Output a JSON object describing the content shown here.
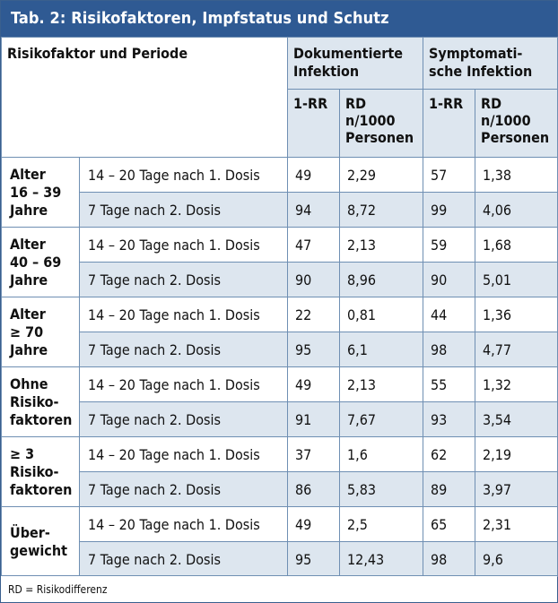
{
  "title": "Tab. 2: Risikofaktoren, Impfstatus und Schutz",
  "header": {
    "col_group_label": "Risikofaktor und Periode",
    "documented": "Dokumentierte Infektion",
    "symptomatic": "Symptomati-\nsche Infektion",
    "rr": "1-RR",
    "rd": "RD\nn/1000\nPersonen"
  },
  "groups": [
    {
      "label": "Alter\n16 – 39\nJahre",
      "rows": [
        {
          "period": "14 – 20 Tage nach 1. Dosis",
          "doc_rr": "49",
          "doc_rd": "2,29",
          "sym_rr": "57",
          "sym_rd": "1,38"
        },
        {
          "period": "7 Tage nach 2. Dosis",
          "doc_rr": "94",
          "doc_rd": "8,72",
          "sym_rr": "99",
          "sym_rd": "4,06"
        }
      ]
    },
    {
      "label": "Alter\n40 – 69\nJahre",
      "rows": [
        {
          "period": "14 – 20 Tage nach 1. Dosis",
          "doc_rr": "47",
          "doc_rd": "2,13",
          "sym_rr": "59",
          "sym_rd": "1,68"
        },
        {
          "period": "7 Tage nach 2. Dosis",
          "doc_rr": "90",
          "doc_rd": "8,96",
          "sym_rr": "90",
          "sym_rd": "5,01"
        }
      ]
    },
    {
      "label": "Alter\n≥ 70\nJahre",
      "rows": [
        {
          "period": "14 – 20 Tage nach 1. Dosis",
          "doc_rr": "22",
          "doc_rd": "0,81",
          "sym_rr": "44",
          "sym_rd": "1,36"
        },
        {
          "period": "7 Tage nach 2. Dosis",
          "doc_rr": "95",
          "doc_rd": "6,1",
          "sym_rr": "98",
          "sym_rd": "4,77"
        }
      ]
    },
    {
      "label": "Ohne\nRisiko-\nfaktoren",
      "rows": [
        {
          "period": "14 – 20 Tage nach 1. Dosis",
          "doc_rr": "49",
          "doc_rd": "2,13",
          "sym_rr": "55",
          "sym_rd": "1,32"
        },
        {
          "period": "7 Tage nach 2. Dosis",
          "doc_rr": "91",
          "doc_rd": "7,67",
          "sym_rr": "93",
          "sym_rd": "3,54"
        }
      ]
    },
    {
      "label": "≥ 3\nRisiko-\nfaktoren",
      "rows": [
        {
          "period": "14 – 20 Tage nach 1. Dosis",
          "doc_rr": "37",
          "doc_rd": "1,6",
          "sym_rr": "62",
          "sym_rd": "2,19"
        },
        {
          "period": "7 Tage nach 2. Dosis",
          "doc_rr": "86",
          "doc_rd": "5,83",
          "sym_rr": "89",
          "sym_rd": "3,97"
        }
      ]
    },
    {
      "label": "Über-\ngewicht",
      "rows": [
        {
          "period": "14 – 20 Tage nach 1. Dosis",
          "doc_rr": "49",
          "doc_rd": "2,5",
          "sym_rr": "65",
          "sym_rd": "2,31"
        },
        {
          "period": "7 Tage nach 2. Dosis",
          "doc_rr": "95",
          "doc_rd": "12,43",
          "sym_rr": "98",
          "sym_rd": "9,6"
        }
      ]
    }
  ],
  "footnote": "RD = Risikodifferenz"
}
